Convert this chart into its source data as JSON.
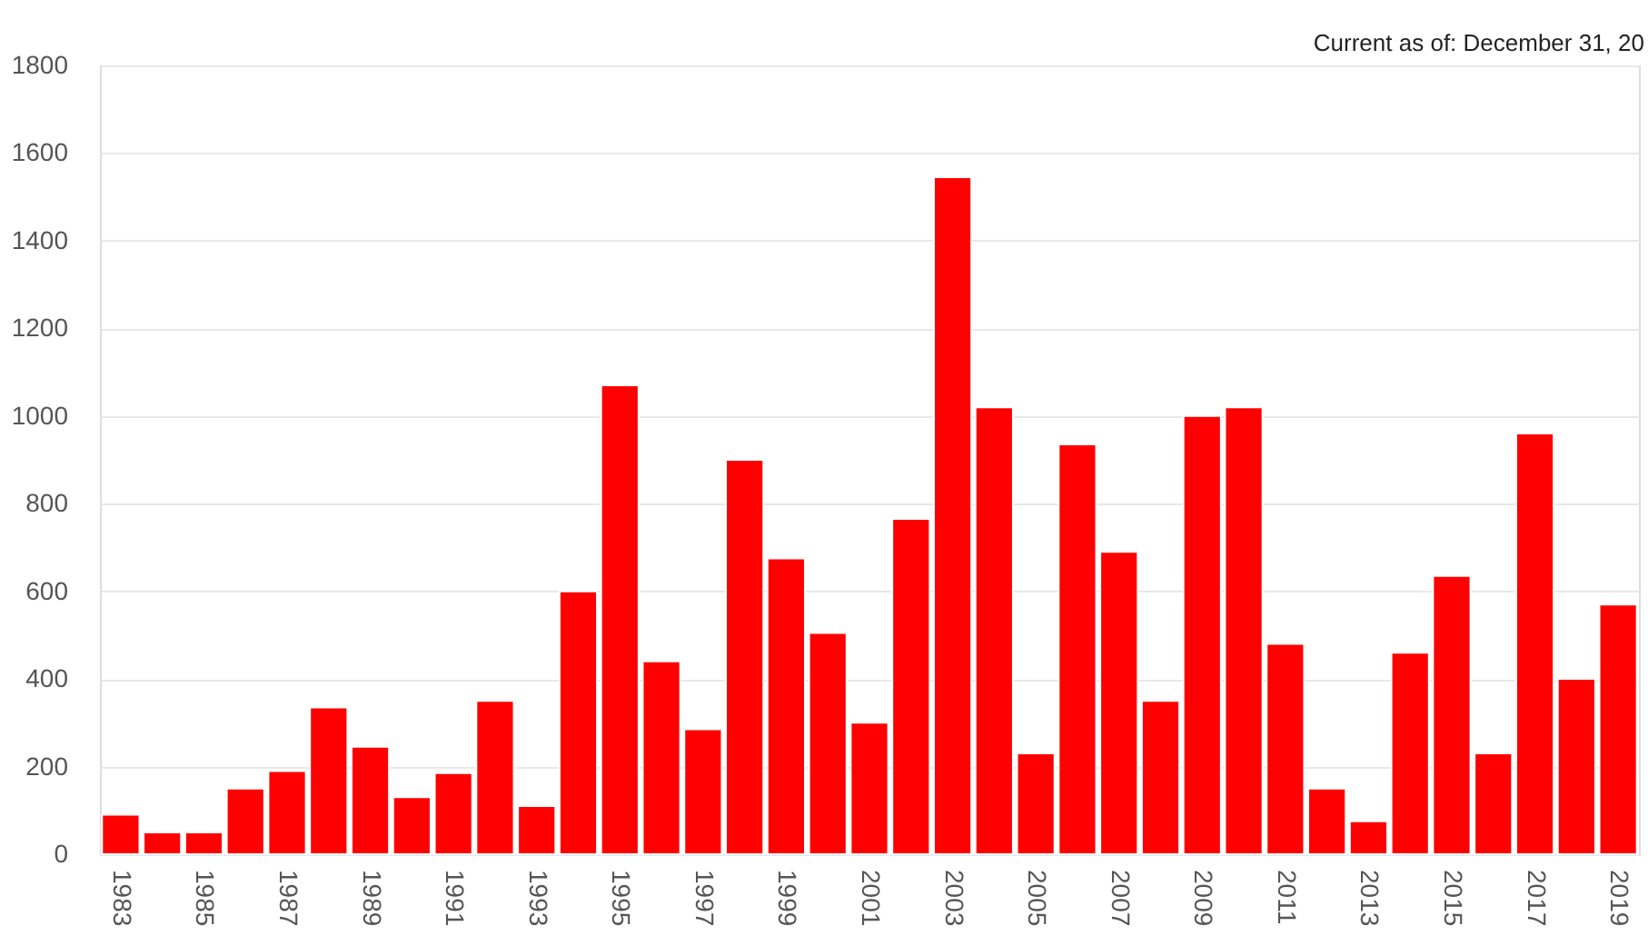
{
  "chart_data": {
    "type": "bar",
    "annotations": [
      "Current as of:  December 31, 20"
    ],
    "categories": [
      "1983",
      null,
      "1985",
      null,
      "1987",
      null,
      "1989",
      null,
      "1991",
      null,
      "1993",
      null,
      "1995",
      null,
      "1997",
      null,
      "1999",
      null,
      "2001",
      null,
      "2003",
      null,
      "2005",
      null,
      "2007",
      null,
      "2009",
      null,
      "2011",
      null,
      "2013",
      null,
      "2015",
      null,
      "2017",
      null,
      "2019"
    ],
    "values": [
      90,
      50,
      50,
      150,
      190,
      335,
      245,
      130,
      185,
      350,
      110,
      600,
      1070,
      440,
      285,
      900,
      675,
      505,
      300,
      765,
      1545,
      1020,
      230,
      935,
      690,
      350,
      1000,
      1020,
      480,
      150,
      75,
      460,
      635,
      230,
      960,
      400,
      570
    ],
    "color": "#ff0000",
    "ylim": [
      0,
      1800
    ],
    "yticks": [
      0,
      200,
      400,
      600,
      800,
      1000,
      1200,
      1400,
      1600,
      1800
    ],
    "grid": "y"
  }
}
